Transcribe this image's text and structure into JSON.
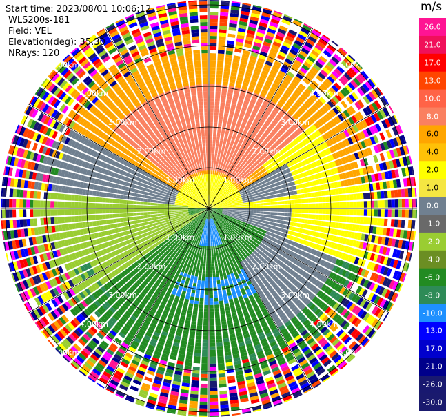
{
  "info": {
    "start_time": "Start time: 2023/08/01 10:06:12",
    "instrument": "WLS200s-181",
    "field": "Field: VEL",
    "elevation": "Elevation(deg): 35.30",
    "nrays": "NRays: 120"
  },
  "colorbar": {
    "unit": "m/s",
    "ticks": [
      "26.0",
      "21.0",
      "17.0",
      "13.0",
      "10.0",
      "8.0",
      "6.0",
      "4.0",
      "2.0",
      "1.0",
      "0.0",
      "-1.0",
      "-2.0",
      "-4.0",
      "-6.0",
      "-8.0",
      "-10.0",
      "-13.0",
      "-17.0",
      "-21.0",
      "-26.0",
      "-30.0"
    ],
    "colors": [
      "#ff1493",
      "#f0105a",
      "#ff0000",
      "#ff4500",
      "#ff6347",
      "#fa8060",
      "#ffa500",
      "#ffc107",
      "#ffff00",
      "#f5e642",
      "#708090",
      "#696969",
      "#9acd32",
      "#6b8e23",
      "#228b22",
      "#2e8b57",
      "#1e90ff",
      "#0000ff",
      "#0000cd",
      "#00008b",
      "#191970",
      "#1a1a6e"
    ]
  },
  "range_labels": [
    "1.00km",
    "2.00km",
    "3.00km",
    "4.00km",
    "5.00km"
  ],
  "field_colors": {
    "noise": [
      "#ff1493",
      "#ff00ff",
      "#0000ff",
      "#00008b",
      "#ffff00",
      "#ffa500",
      "#ff0000",
      "#228b22",
      "#ffffff",
      "#9acd32",
      "#191970",
      "#ff4500"
    ],
    "orange": "#ffa500",
    "yellow": "#ffff00",
    "salmon": "#fa8060",
    "gray": "#708090",
    "ygreen": "#9acd32",
    "green": "#228b22",
    "teal": "#2e8b57",
    "blue": "#1e90ff"
  }
}
